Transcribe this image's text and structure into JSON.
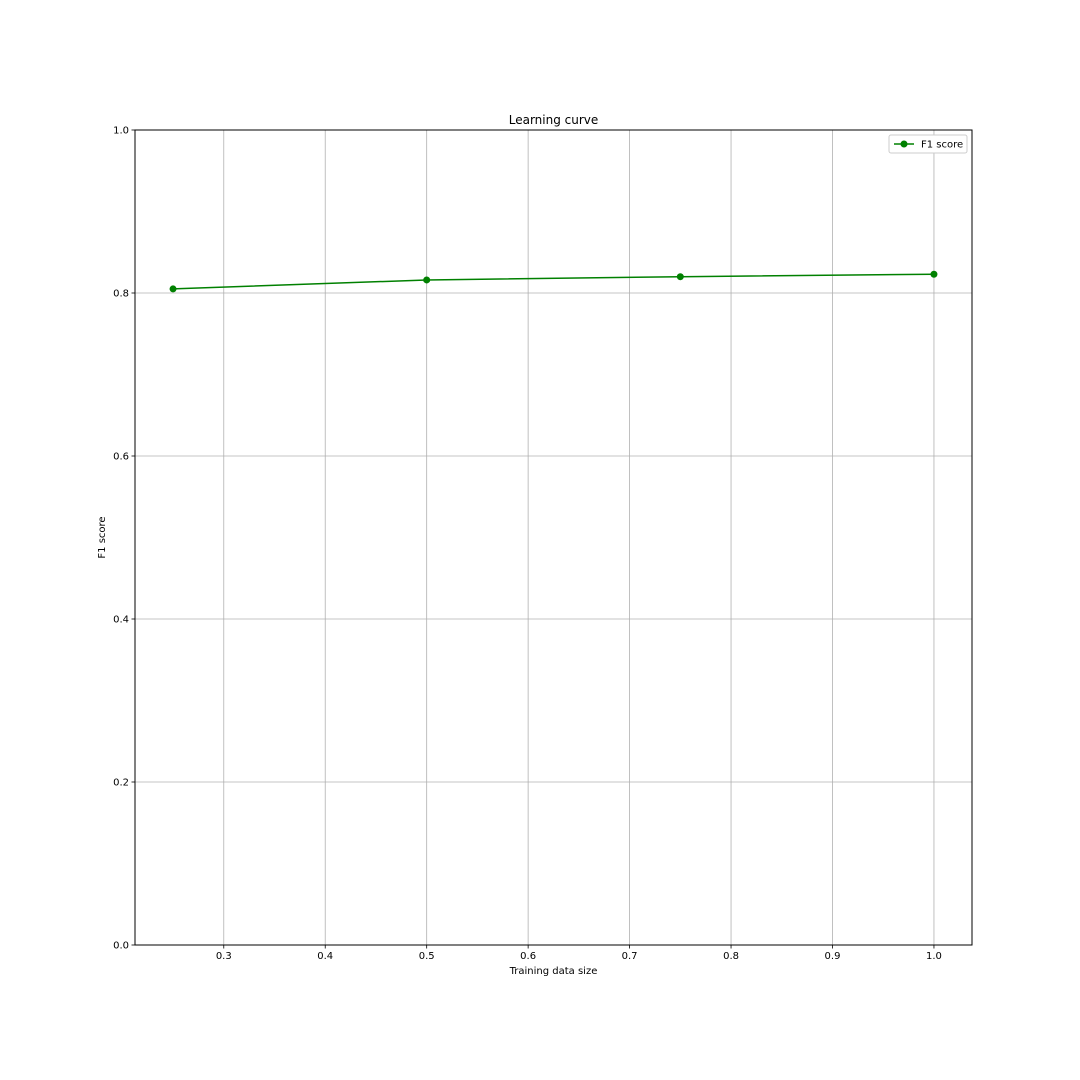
{
  "chart_data": {
    "type": "line",
    "title": "Learning curve",
    "xlabel": "Training data size",
    "ylabel": "F1 score",
    "xlim": [
      0.2125,
      1.0375
    ],
    "ylim": [
      0.0,
      1.0
    ],
    "xticks": [
      "0.3",
      "0.4",
      "0.5",
      "0.6",
      "0.7",
      "0.8",
      "0.9",
      "1.0"
    ],
    "yticks": [
      "0.0",
      "0.2",
      "0.4",
      "0.6",
      "0.8",
      "1.0"
    ],
    "grid": true,
    "legend_position": "top-right",
    "series": [
      {
        "name": "F1 score",
        "color": "#008000",
        "marker": "circle",
        "x": [
          0.25,
          0.5,
          0.75,
          1.0
        ],
        "y": [
          0.805,
          0.816,
          0.82,
          0.823
        ]
      }
    ]
  }
}
